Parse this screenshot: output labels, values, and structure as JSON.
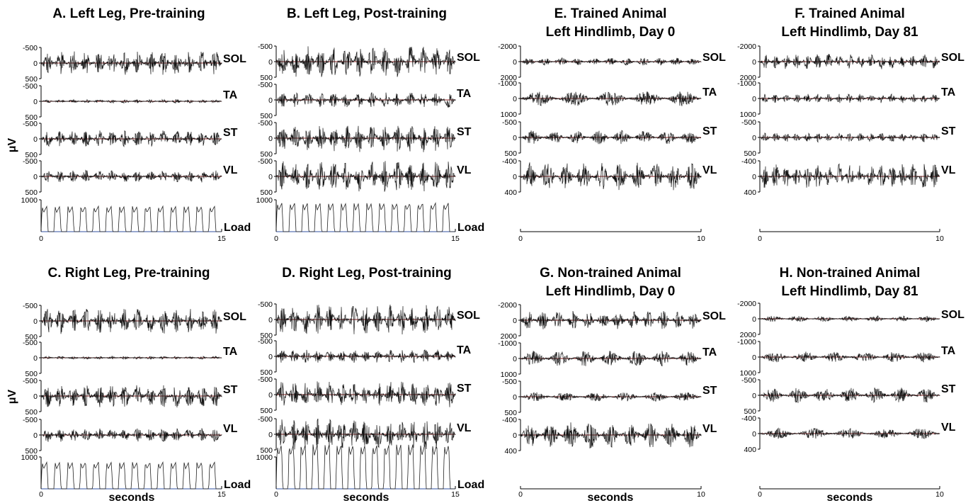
{
  "figure": {
    "ylabel": "μV",
    "xlabel": "seconds"
  },
  "chart_data": [
    {
      "type": "line",
      "title": [
        "A. Left Leg, Pre-training"
      ],
      "x_range": [
        0,
        15
      ],
      "x_ticks": [
        "0",
        "15"
      ],
      "series": [
        {
          "name": "SOL",
          "yticks": [
            "500",
            "0",
            "-500"
          ],
          "amp": 0.8,
          "bursts": 14
        },
        {
          "name": "TA",
          "yticks": [
            "500",
            "0",
            "-500"
          ],
          "amp": 0.12,
          "bursts": 14
        },
        {
          "name": "ST",
          "yticks": [
            "500",
            "0",
            "-500"
          ],
          "amp": 0.55,
          "bursts": 14
        },
        {
          "name": "VL",
          "yticks": [
            "500",
            "0",
            "-500"
          ],
          "amp": 0.4,
          "bursts": 14
        },
        {
          "name": "Load",
          "yticks": [
            "1000",
            "",
            ""
          ],
          "load": 0.4,
          "cycles": 14
        }
      ]
    },
    {
      "type": "line",
      "title": [
        "B. Left Leg, Post-training"
      ],
      "x_range": [
        0,
        15
      ],
      "x_ticks": [
        "0",
        "15"
      ],
      "series": [
        {
          "name": "SOL",
          "yticks": [
            "500",
            "0",
            "-500"
          ],
          "amp": 1.0,
          "bursts": 14
        },
        {
          "name": "TA",
          "yticks": [
            "500",
            "0",
            "-500"
          ],
          "amp": 0.5,
          "bursts": 14
        },
        {
          "name": "ST",
          "yticks": [
            "500",
            "0",
            "-500"
          ],
          "amp": 0.9,
          "bursts": 14
        },
        {
          "name": "VL",
          "yticks": [
            "500",
            "0",
            "-500"
          ],
          "amp": 1.0,
          "bursts": 14
        },
        {
          "name": "Load",
          "yticks": [
            "1000",
            "",
            ""
          ],
          "load": 0.45,
          "cycles": 14
        }
      ]
    },
    {
      "type": "line",
      "title": [
        "C. Right Leg, Pre-training"
      ],
      "x_range": [
        0,
        15
      ],
      "x_ticks": [
        "0",
        "15"
      ],
      "series": [
        {
          "name": "SOL",
          "yticks": [
            "500",
            "0",
            "-500"
          ],
          "amp": 0.85,
          "bursts": 14
        },
        {
          "name": "TA",
          "yticks": [
            "500",
            "0",
            "-500"
          ],
          "amp": 0.1,
          "bursts": 14
        },
        {
          "name": "ST",
          "yticks": [
            "500",
            "0",
            "-500"
          ],
          "amp": 0.75,
          "bursts": 14
        },
        {
          "name": "VL",
          "yticks": [
            "500",
            "0",
            "-500"
          ],
          "amp": 0.45,
          "bursts": 14
        },
        {
          "name": "Load",
          "yticks": [
            "1000",
            "",
            ""
          ],
          "load": 0.42,
          "cycles": 14
        }
      ]
    },
    {
      "type": "line",
      "title": [
        "D. Right Leg, Post-training"
      ],
      "x_range": [
        0,
        15
      ],
      "x_ticks": [
        "0",
        "15"
      ],
      "series": [
        {
          "name": "SOL",
          "yticks": [
            "500",
            "0",
            "-500"
          ],
          "amp": 1.0,
          "bursts": 15
        },
        {
          "name": "TA",
          "yticks": [
            "500",
            "0",
            "-500"
          ],
          "amp": 0.45,
          "bursts": 15
        },
        {
          "name": "ST",
          "yticks": [
            "500",
            "0",
            "-500"
          ],
          "amp": 0.9,
          "bursts": 15
        },
        {
          "name": "VL",
          "yticks": [
            "500",
            "0",
            "-500"
          ],
          "amp": 1.0,
          "bursts": 15
        },
        {
          "name": "Load",
          "yticks": [
            "1000",
            "",
            ""
          ],
          "load": 0.7,
          "cycles": 15
        }
      ]
    },
    {
      "type": "line",
      "title": [
        "E. Trained Animal",
        "Left Hindlimb, Day 0"
      ],
      "x_range": [
        0,
        10
      ],
      "x_ticks": [
        "0",
        "10"
      ],
      "series": [
        {
          "name": "SOL",
          "yticks": [
            "2000",
            "0",
            "-2000"
          ],
          "amp": 0.25,
          "bursts": 11
        },
        {
          "name": "TA",
          "yticks": [
            "1000",
            "0",
            "-1000"
          ],
          "amp": 0.5,
          "bursts": 5
        },
        {
          "name": "ST",
          "yticks": [
            "500",
            "0",
            "-500"
          ],
          "amp": 0.45,
          "bursts": 8
        },
        {
          "name": "VL",
          "yticks": [
            "400",
            "0",
            "-400"
          ],
          "amp": 0.9,
          "bursts": 10
        },
        {
          "name": "",
          "yticks": [
            "",
            "",
            ""
          ],
          "axisOnly": true
        }
      ]
    },
    {
      "type": "line",
      "title": [
        "F. Trained Animal",
        "Left Hindlimb, Day 81"
      ],
      "x_range": [
        0,
        10
      ],
      "x_ticks": [
        "0",
        "10"
      ],
      "series": [
        {
          "name": "SOL",
          "yticks": [
            "2000",
            "0",
            "-2000"
          ],
          "amp": 0.5,
          "bursts": 17
        },
        {
          "name": "TA",
          "yticks": [
            "1000",
            "0",
            "-1000"
          ],
          "amp": 0.3,
          "bursts": 17
        },
        {
          "name": "ST",
          "yticks": [
            "500",
            "0",
            "-500"
          ],
          "amp": 0.3,
          "bursts": 17
        },
        {
          "name": "VL",
          "yticks": [
            "400",
            "0",
            "-400"
          ],
          "amp": 0.8,
          "bursts": 17
        },
        {
          "name": "",
          "yticks": [
            "",
            "",
            ""
          ],
          "axisOnly": true
        }
      ]
    },
    {
      "type": "line",
      "title": [
        "G. Non-trained Animal",
        "Left Hindlimb, Day 0"
      ],
      "x_range": [
        0,
        10
      ],
      "x_ticks": [
        "0",
        "10"
      ],
      "series": [
        {
          "name": "SOL",
          "yticks": [
            "2000",
            "0",
            "-2000"
          ],
          "amp": 0.6,
          "bursts": 12
        },
        {
          "name": "TA",
          "yticks": [
            "1000",
            "0",
            "-1000"
          ],
          "amp": 0.5,
          "bursts": 7
        },
        {
          "name": "ST",
          "yticks": [
            "500",
            "0",
            "-500"
          ],
          "amp": 0.3,
          "bursts": 6
        },
        {
          "name": "VL",
          "yticks": [
            "400",
            "0",
            "-400"
          ],
          "amp": 0.85,
          "bursts": 9
        },
        {
          "name": "",
          "yticks": [
            "",
            "",
            ""
          ],
          "axisOnly": true
        }
      ]
    },
    {
      "type": "line",
      "title": [
        "H. Non-trained Animal",
        "Left Hindlimb, Day 81"
      ],
      "x_range": [
        0,
        10
      ],
      "x_ticks": [
        "0",
        "10"
      ],
      "series": [
        {
          "name": "SOL",
          "yticks": [
            "2000",
            "0",
            "-2000"
          ],
          "amp": 0.2,
          "bursts": 7
        },
        {
          "name": "TA",
          "yticks": [
            "1000",
            "0",
            "-1000"
          ],
          "amp": 0.35,
          "bursts": 6
        },
        {
          "name": "ST",
          "yticks": [
            "500",
            "0",
            "-500"
          ],
          "amp": 0.5,
          "bursts": 7
        },
        {
          "name": "VL",
          "yticks": [
            "400",
            "0",
            "-400"
          ],
          "amp": 0.35,
          "bursts": 5
        },
        {
          "name": "",
          "yticks": [
            "",
            "",
            ""
          ],
          "axisOnly": true
        }
      ]
    }
  ]
}
